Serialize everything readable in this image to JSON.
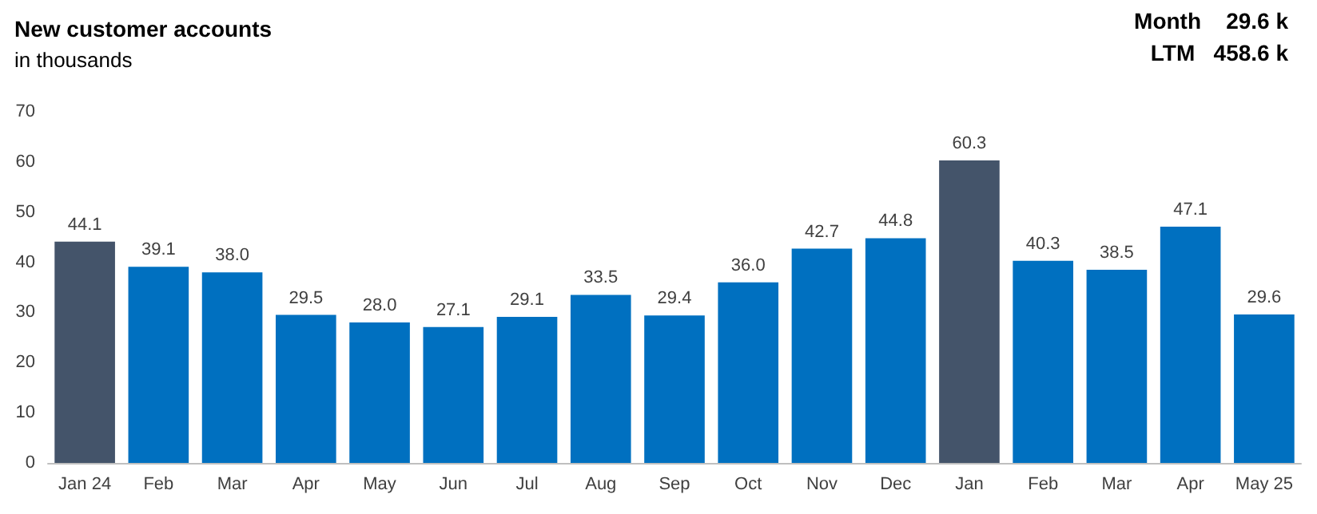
{
  "chart_data": {
    "type": "bar",
    "title": "New customer accounts",
    "subtitle": "in thousands",
    "annotations": [
      "Month    29.6 k",
      "LTM   458.6 k"
    ],
    "categories": [
      "Jan 24",
      "Feb",
      "Mar",
      "Apr",
      "May",
      "Jun",
      "Jul",
      "Aug",
      "Sep",
      "Oct",
      "Nov",
      "Dec",
      "Jan",
      "Feb",
      "Mar",
      "Apr",
      "May 25"
    ],
    "values": [
      44.1,
      39.1,
      38.0,
      29.5,
      28.0,
      27.1,
      29.1,
      33.5,
      29.4,
      36.0,
      42.7,
      44.8,
      60.3,
      40.3,
      38.5,
      47.1,
      29.6
    ],
    "value_labels": [
      "44.1",
      "39.1",
      "38.0",
      "29.5",
      "28.0",
      "27.1",
      "29.1",
      "33.5",
      "29.4",
      "36.0",
      "42.7",
      "44.8",
      "60.3",
      "40.3",
      "38.5",
      "47.1",
      "29.6"
    ],
    "colors": [
      "#44546a",
      "#0070c0",
      "#0070c0",
      "#0070c0",
      "#0070c0",
      "#0070c0",
      "#0070c0",
      "#0070c0",
      "#0070c0",
      "#0070c0",
      "#0070c0",
      "#0070c0",
      "#44546a",
      "#0070c0",
      "#0070c0",
      "#0070c0",
      "#0070c0"
    ],
    "ylim": [
      0,
      70
    ],
    "yticks": [
      0,
      10,
      20,
      30,
      40,
      50,
      60,
      70
    ],
    "grid": false
  }
}
